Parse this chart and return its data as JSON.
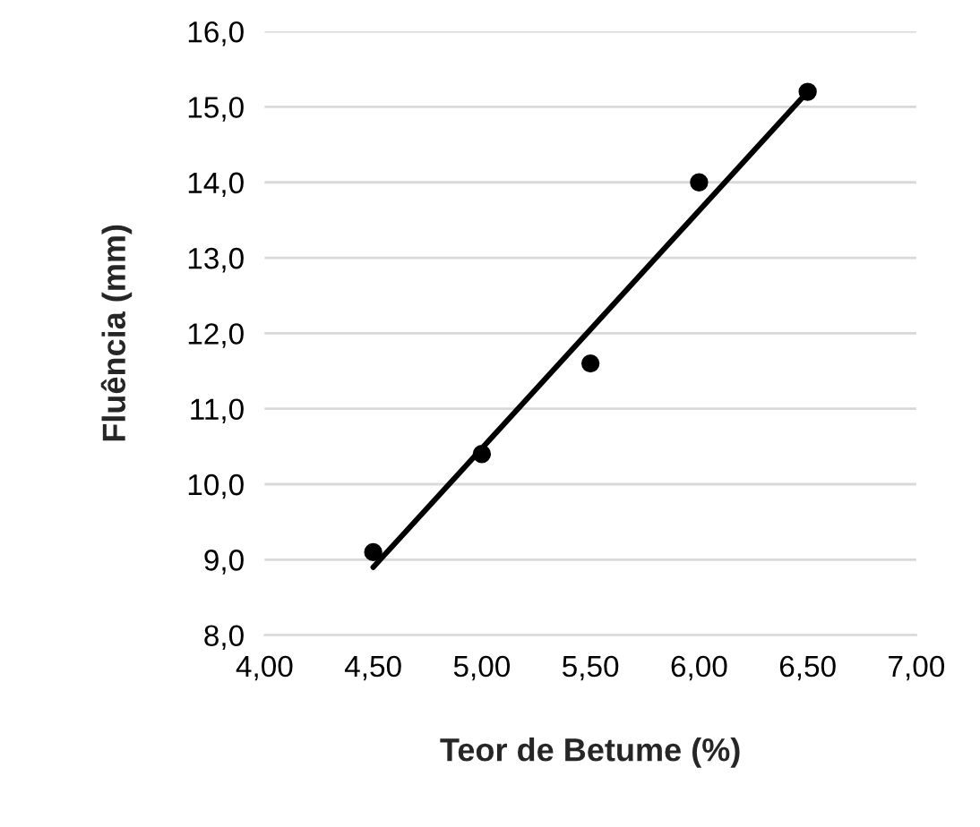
{
  "chart_data": {
    "type": "scatter",
    "xlabel": "Teor de Betume (%)",
    "ylabel": "Fluência (mm)",
    "x": [
      4.5,
      5.0,
      5.5,
      6.0,
      6.5
    ],
    "series": [
      {
        "color": "#000000",
        "values": [
          9.1,
          10.4,
          11.6,
          14.0,
          15.2
        ],
        "marker": "circle"
      },
      {
        "type": "line",
        "color": "#000000",
        "x": [
          4.5,
          6.5
        ],
        "values": [
          8.9,
          15.2
        ],
        "marker": "none",
        "line_style": "solid"
      }
    ],
    "xlim": [
      4.0,
      7.0
    ],
    "xticks": [
      {
        "value": 4.0,
        "label": "4,00"
      },
      {
        "value": 4.5,
        "label": "4,50"
      },
      {
        "value": 5.0,
        "label": "5,00"
      },
      {
        "value": 5.5,
        "label": "5,50"
      },
      {
        "value": 6.0,
        "label": "6,00"
      },
      {
        "value": 6.5,
        "label": "6,50"
      },
      {
        "value": 7.0,
        "label": "7,00"
      }
    ],
    "ylim": [
      8.0,
      16.0
    ],
    "yticks": [
      {
        "value": 8.0,
        "label": "8,0"
      },
      {
        "value": 9.0,
        "label": "9,0"
      },
      {
        "value": 10.0,
        "label": "10,0"
      },
      {
        "value": 11.0,
        "label": "11,0"
      },
      {
        "value": 12.0,
        "label": "12,0"
      },
      {
        "value": 13.0,
        "label": "13,0"
      },
      {
        "value": 14.0,
        "label": "14,0"
      },
      {
        "value": 15.0,
        "label": "15,0"
      },
      {
        "value": 16.0,
        "label": "16,0"
      }
    ],
    "grid": "y",
    "legend": false
  }
}
